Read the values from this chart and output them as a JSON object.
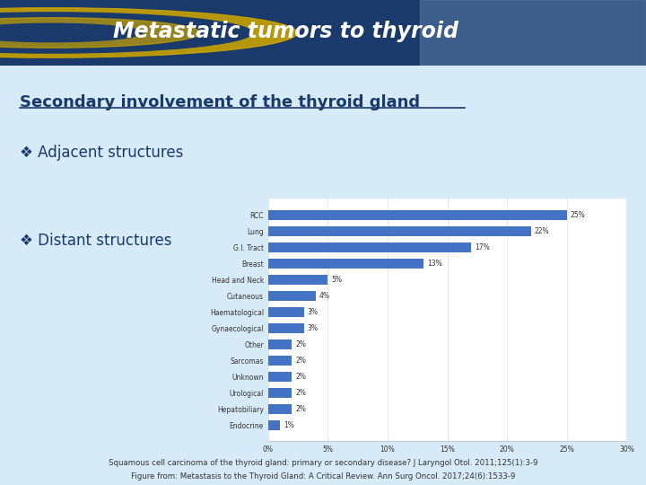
{
  "title": "Metastatic tumors to thyroid",
  "subtitle": "Secondary involvement of the thyroid gland",
  "bullet1": "❖ Adjacent structures",
  "bullet2": "❖ Distant structures",
  "bg_color": "#d6eaf8",
  "header_bg": "#1a3a6b",
  "header_text_color": "#ffffff",
  "subtitle_color": "#1a3a6b",
  "bullet_color": "#1a3a6b",
  "bar_color": "#4472c4",
  "bar_labels": [
    "Endocrine",
    "Hepatobiliary",
    "Urological",
    "Unknown",
    "Sarcomas",
    "Other",
    "Gynaecological",
    "Haematological",
    "Cutaneous",
    "Head and Neck",
    "Breast",
    "G.I. Tract",
    "Lung",
    "RCC"
  ],
  "bar_values": [
    1,
    2,
    2,
    2,
    2,
    2,
    3,
    3,
    4,
    5,
    13,
    17,
    22,
    25
  ],
  "bar_value_labels": [
    "1%",
    "2%",
    "2%",
    "2%",
    "2%",
    "2%",
    "3%",
    "3%",
    "4%",
    "5%",
    "13%",
    "17%",
    "22%",
    "25%"
  ],
  "x_ticks": [
    0,
    5,
    10,
    15,
    20,
    25,
    30
  ],
  "x_tick_labels": [
    "0%",
    "5%",
    "10%",
    "15%",
    "20%",
    "25%",
    "30%"
  ],
  "footer1": "Squamous cell carcinoma of the thyroid gland: primary or secondary disease? J Laryngol Otol. 2011;125(1):3-9",
  "footer2": "Figure from: Metastasis to the Thyroid Gland: A Critical Review. Ann Surg Oncol. 2017;24(6):1533-9"
}
